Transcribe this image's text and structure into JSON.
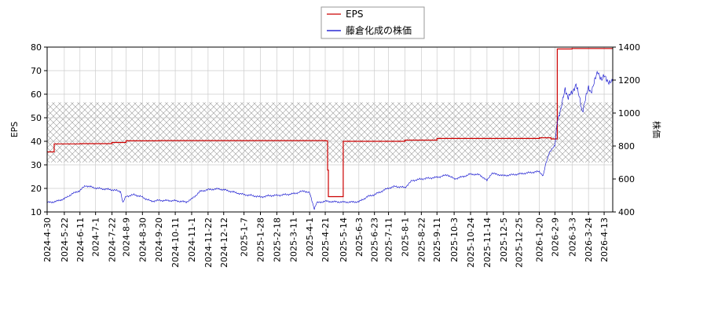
{
  "chart_data": {
    "type": "line",
    "title": "",
    "legend": {
      "placement": "top-center",
      "entries": [
        {
          "name": "EPS",
          "color": "#cc0000"
        },
        {
          "name": "藤倉化成の株価",
          "color": "#0000cc"
        }
      ]
    },
    "x_axis": {
      "type": "date",
      "range": [
        "2024-04-30",
        "2026-04-24"
      ],
      "ticks": [
        "2024-4-30",
        "2024-5-22",
        "2024-6-11",
        "2024-7-1",
        "2024-7-22",
        "2024-8-9",
        "2024-8-30",
        "2024-9-20",
        "2024-10-11",
        "2024-11-1",
        "2024-11-22",
        "2024-12-12",
        "2025-1-7",
        "2025-1-28",
        "2025-2-18",
        "2025-3-11",
        "2025-4-1",
        "2025-4-21",
        "2025-5-14",
        "2025-6-3",
        "2025-6-23",
        "2025-7-11",
        "2025-8-1",
        "2025-8-22",
        "2025-9-11",
        "2025-10-3",
        "2025-10-24",
        "2025-11-14",
        "2025-12-5",
        "2025-12-25",
        "2026-1-20",
        "2026-2-9",
        "2026-3-3",
        "2026-3-24",
        "2026-4-13"
      ]
    },
    "y_left": {
      "label": "EPS",
      "range": [
        10,
        80
      ],
      "ticks": [
        10,
        20,
        30,
        40,
        50,
        60,
        70,
        80
      ]
    },
    "y_right": {
      "label": "株価",
      "range": [
        400,
        1400
      ],
      "ticks": [
        400,
        600,
        800,
        1000,
        1200,
        1400
      ]
    },
    "grid": true,
    "hatched_band": {
      "axis": "right",
      "from": 700,
      "to": 1065
    },
    "series": [
      {
        "name": "EPS",
        "axis": "left",
        "color": "#cc0000",
        "step": true,
        "points": [
          [
            "2024-04-30",
            35.5
          ],
          [
            "2024-05-08",
            35.5
          ],
          [
            "2024-05-09",
            38.9
          ],
          [
            "2024-06-11",
            39.0
          ],
          [
            "2024-07-22",
            39.5
          ],
          [
            "2024-08-09",
            40.2
          ],
          [
            "2024-09-20",
            40.3
          ],
          [
            "2024-12-12",
            40.3
          ],
          [
            "2025-04-21",
            40.2
          ],
          [
            "2025-04-24",
            27.8
          ],
          [
            "2025-04-25",
            16.5
          ],
          [
            "2025-05-12",
            16.5
          ],
          [
            "2025-05-14",
            40.0
          ],
          [
            "2025-08-01",
            40.5
          ],
          [
            "2025-09-11",
            41.2
          ],
          [
            "2026-01-20",
            41.5
          ],
          [
            "2026-02-04",
            41.0
          ],
          [
            "2026-02-10",
            41.0
          ],
          [
            "2026-02-12",
            79.2
          ],
          [
            "2026-03-03",
            79.4
          ],
          [
            "2026-04-24",
            79.4
          ]
        ]
      },
      {
        "name": "藤倉化成の株価",
        "axis": "right",
        "color": "#0000cc",
        "step": false,
        "points": [
          [
            "2024-04-30",
            457
          ],
          [
            "2024-05-10",
            462
          ],
          [
            "2024-05-22",
            480
          ],
          [
            "2024-06-01",
            510
          ],
          [
            "2024-06-11",
            530
          ],
          [
            "2024-06-18",
            560
          ],
          [
            "2024-07-01",
            545
          ],
          [
            "2024-07-10",
            540
          ],
          [
            "2024-07-22",
            535
          ],
          [
            "2024-08-02",
            525
          ],
          [
            "2024-08-05",
            455
          ],
          [
            "2024-08-09",
            495
          ],
          [
            "2024-08-20",
            505
          ],
          [
            "2024-08-30",
            490
          ],
          [
            "2024-09-10",
            465
          ],
          [
            "2024-09-20",
            470
          ],
          [
            "2024-10-11",
            468
          ],
          [
            "2024-10-25",
            460
          ],
          [
            "2024-11-01",
            478
          ],
          [
            "2024-11-12",
            525
          ],
          [
            "2024-11-22",
            535
          ],
          [
            "2024-12-05",
            540
          ],
          [
            "2024-12-12",
            535
          ],
          [
            "2024-12-25",
            520
          ],
          [
            "2025-01-07",
            505
          ],
          [
            "2025-01-20",
            498
          ],
          [
            "2025-01-28",
            490
          ],
          [
            "2025-02-10",
            500
          ],
          [
            "2025-02-18",
            500
          ],
          [
            "2025-03-01",
            505
          ],
          [
            "2025-03-11",
            510
          ],
          [
            "2025-03-25",
            528
          ],
          [
            "2025-04-01",
            515
          ],
          [
            "2025-04-07",
            420
          ],
          [
            "2025-04-10",
            455
          ],
          [
            "2025-04-21",
            465
          ],
          [
            "2025-05-01",
            462
          ],
          [
            "2025-05-14",
            460
          ],
          [
            "2025-05-25",
            460
          ],
          [
            "2025-06-03",
            462
          ],
          [
            "2025-06-15",
            495
          ],
          [
            "2025-06-23",
            505
          ],
          [
            "2025-07-11",
            545
          ],
          [
            "2025-07-20",
            555
          ],
          [
            "2025-08-01",
            548
          ],
          [
            "2025-08-10",
            590
          ],
          [
            "2025-08-22",
            600
          ],
          [
            "2025-09-11",
            610
          ],
          [
            "2025-09-25",
            625
          ],
          [
            "2025-10-03",
            600
          ],
          [
            "2025-10-15",
            615
          ],
          [
            "2025-10-24",
            630
          ],
          [
            "2025-11-05",
            625
          ],
          [
            "2025-11-14",
            590
          ],
          [
            "2025-11-20",
            635
          ],
          [
            "2025-12-05",
            620
          ],
          [
            "2025-12-15",
            625
          ],
          [
            "2025-12-25",
            630
          ],
          [
            "2026-01-10",
            640
          ],
          [
            "2026-01-20",
            645
          ],
          [
            "2026-01-25",
            620
          ],
          [
            "2026-01-28",
            685
          ],
          [
            "2026-02-02",
            765
          ],
          [
            "2026-02-09",
            800
          ],
          [
            "2026-02-12",
            960
          ],
          [
            "2026-02-17",
            1025
          ],
          [
            "2026-02-22",
            1150
          ],
          [
            "2026-02-26",
            1095
          ],
          [
            "2026-03-03",
            1120
          ],
          [
            "2026-03-08",
            1180
          ],
          [
            "2026-03-12",
            1095
          ],
          [
            "2026-03-16",
            1010
          ],
          [
            "2026-03-20",
            1085
          ],
          [
            "2026-03-24",
            1150
          ],
          [
            "2026-03-27",
            1130
          ],
          [
            "2026-04-01",
            1195
          ],
          [
            "2026-04-05",
            1250
          ],
          [
            "2026-04-10",
            1205
          ],
          [
            "2026-04-13",
            1220
          ],
          [
            "2026-04-18",
            1195
          ],
          [
            "2026-04-24",
            1185
          ]
        ]
      }
    ]
  }
}
